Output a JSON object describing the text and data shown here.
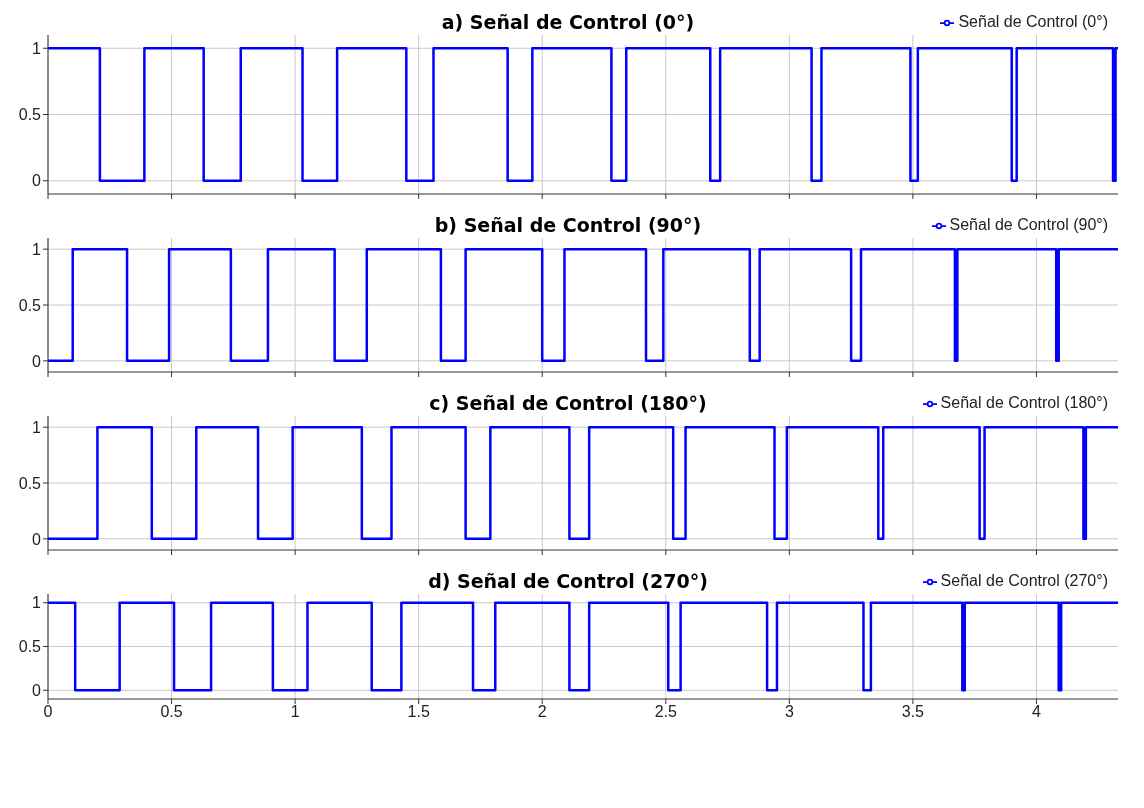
{
  "chart_data": [
    {
      "type": "step",
      "title": "a) Señal de Control (0°)",
      "xlim": [
        0,
        4.33
      ],
      "xticks": [
        0,
        0.5,
        1,
        1.5,
        2,
        2.5,
        3,
        3.5,
        4
      ],
      "ylim": [
        -0.1,
        1.1
      ],
      "yticks": [
        0,
        0.5,
        1
      ],
      "grid": true,
      "legend": "top right",
      "tick_labels": "y",
      "marker": "none",
      "line_style": "solid",
      "series": [
        {
          "name": "Señal de Control (0°)",
          "color": "#0000ff",
          "x": [
            0,
            0.21,
            0.39,
            0.63,
            0.78,
            1.03,
            1.17,
            1.45,
            1.56,
            1.86,
            1.96,
            2.28,
            2.34,
            2.68,
            2.72,
            3.09,
            3.13,
            3.49,
            3.52,
            3.9,
            3.92,
            4.31,
            4.32,
            4.33
          ],
          "values": [
            1,
            0,
            1,
            0,
            1,
            0,
            1,
            0,
            1,
            0,
            1,
            0,
            1,
            0,
            1,
            0,
            1,
            0,
            1,
            0,
            1,
            0,
            1,
            1
          ]
        }
      ]
    },
    {
      "type": "step",
      "title": "b) Señal de Control (90°)",
      "xlim": [
        0,
        4.33
      ],
      "xticks": [
        0,
        0.5,
        1,
        1.5,
        2,
        2.5,
        3,
        3.5,
        4
      ],
      "ylim": [
        -0.1,
        1.1
      ],
      "yticks": [
        0,
        0.5,
        1
      ],
      "grid": true,
      "legend": "top right",
      "tick_labels": "y",
      "marker": "none",
      "line_style": "solid",
      "series": [
        {
          "name": "Señal de Control (90°)",
          "color": "#0000ff",
          "x": [
            0,
            0.1,
            0.32,
            0.49,
            0.74,
            0.89,
            1.16,
            1.29,
            1.59,
            1.69,
            2.0,
            2.09,
            2.42,
            2.49,
            2.84,
            2.88,
            3.25,
            3.29,
            3.67,
            3.68,
            4.08,
            4.09,
            4.33
          ],
          "values": [
            0,
            1,
            0,
            1,
            0,
            1,
            0,
            1,
            0,
            1,
            0,
            1,
            0,
            1,
            0,
            1,
            0,
            1,
            0,
            1,
            0,
            1,
            1
          ]
        }
      ]
    },
    {
      "type": "step",
      "title": "c) Señal de Control (180°)",
      "xlim": [
        0,
        4.33
      ],
      "xticks": [
        0,
        0.5,
        1,
        1.5,
        2,
        2.5,
        3,
        3.5,
        4
      ],
      "ylim": [
        -0.1,
        1.1
      ],
      "yticks": [
        0,
        0.5,
        1
      ],
      "grid": true,
      "legend": "top right",
      "tick_labels": "y",
      "marker": "none",
      "line_style": "solid",
      "series": [
        {
          "name": "Señal de Control (180°)",
          "color": "#0000ff",
          "x": [
            0,
            0.2,
            0.42,
            0.6,
            0.85,
            0.99,
            1.27,
            1.39,
            1.69,
            1.79,
            2.11,
            2.19,
            2.53,
            2.58,
            2.94,
            2.99,
            3.36,
            3.38,
            3.77,
            3.79,
            4.19,
            4.2,
            4.33
          ],
          "values": [
            0,
            1,
            0,
            1,
            0,
            1,
            0,
            1,
            0,
            1,
            0,
            1,
            0,
            1,
            0,
            1,
            0,
            1,
            0,
            1,
            0,
            1,
            1
          ]
        }
      ]
    },
    {
      "type": "step",
      "title": "d) Señal de Control (270°)",
      "xlim": [
        0,
        4.33
      ],
      "xticks": [
        0,
        0.5,
        1,
        1.5,
        2,
        2.5,
        3,
        3.5,
        4
      ],
      "ylim": [
        -0.1,
        1.1
      ],
      "yticks": [
        0,
        0.5,
        1
      ],
      "grid": true,
      "legend": "top right",
      "marker": "none",
      "line_style": "solid",
      "series": [
        {
          "name": "Señal de Control (270°)",
          "color": "#0000ff",
          "x": [
            0,
            0.11,
            0.29,
            0.51,
            0.66,
            0.91,
            1.05,
            1.31,
            1.43,
            1.72,
            1.81,
            2.11,
            2.19,
            2.51,
            2.56,
            2.91,
            2.95,
            3.3,
            3.33,
            3.7,
            3.71,
            4.09,
            4.1,
            4.33
          ],
          "values": [
            1,
            0,
            1,
            0,
            1,
            0,
            1,
            0,
            1,
            0,
            1,
            0,
            1,
            0,
            1,
            0,
            1,
            0,
            1,
            0,
            1,
            0,
            1,
            1
          ]
        }
      ]
    }
  ]
}
